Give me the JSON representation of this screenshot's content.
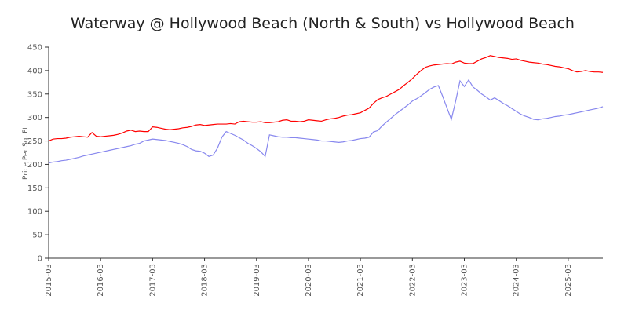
{
  "chart_data": {
    "type": "line",
    "title": "Waterway @ Hollywood Beach (North & South) vs Hollywood Beach",
    "y_label": "Price Per Sq. Ft",
    "categories": [
      "2015-03",
      "2015-04",
      "2015-05",
      "2015-06",
      "2015-07",
      "2015-08",
      "2015-09",
      "2015-10",
      "2015-11",
      "2015-12",
      "2016-01",
      "2016-02",
      "2016-03",
      "2016-04",
      "2016-05",
      "2016-06",
      "2016-07",
      "2016-08",
      "2016-09",
      "2016-10",
      "2016-11",
      "2016-12",
      "2017-01",
      "2017-02",
      "2017-03",
      "2017-04",
      "2017-05",
      "2017-06",
      "2017-07",
      "2017-08",
      "2017-09",
      "2017-10",
      "2017-11",
      "2017-12",
      "2018-01",
      "2018-02",
      "2018-03",
      "2018-04",
      "2018-05",
      "2018-06",
      "2018-07",
      "2018-08",
      "2018-09",
      "2018-10",
      "2018-11",
      "2018-12",
      "2019-01",
      "2019-02",
      "2019-03",
      "2019-04",
      "2019-05",
      "2019-06",
      "2019-07",
      "2019-08",
      "2019-09",
      "2019-10",
      "2019-11",
      "2019-12",
      "2020-01",
      "2020-02",
      "2020-03",
      "2020-04",
      "2020-05",
      "2020-06",
      "2020-07",
      "2020-08",
      "2020-09",
      "2020-10",
      "2020-11",
      "2020-12",
      "2021-01",
      "2021-02",
      "2021-03",
      "2021-04",
      "2021-05",
      "2021-06",
      "2021-07",
      "2021-08",
      "2021-09",
      "2021-10",
      "2021-11",
      "2021-12",
      "2022-01",
      "2022-02",
      "2022-03",
      "2022-04",
      "2022-05",
      "2022-06",
      "2022-07",
      "2022-08",
      "2022-09",
      "2022-10",
      "2022-11",
      "2022-12",
      "2023-01",
      "2023-02",
      "2023-03",
      "2023-04",
      "2023-05",
      "2023-06",
      "2023-07",
      "2023-08",
      "2023-09",
      "2023-10",
      "2023-11",
      "2023-12",
      "2024-01",
      "2024-02",
      "2024-03",
      "2024-04",
      "2024-05",
      "2024-06",
      "2024-07",
      "2024-08",
      "2024-09",
      "2024-10",
      "2024-11",
      "2024-12",
      "2025-01",
      "2025-02",
      "2025-03",
      "2025-04",
      "2025-05",
      "2025-06",
      "2025-07",
      "2025-08",
      "2025-09",
      "2025-10",
      "2025-11"
    ],
    "xticks": [
      "2015-03",
      "2016-03",
      "2017-03",
      "2018-03",
      "2019-03",
      "2020-03",
      "2021-03",
      "2022-03",
      "2023-03",
      "2024-03",
      "2025-03"
    ],
    "series": [
      {
        "color": "#ff0000",
        "values": [
          250,
          254,
          255,
          255,
          256,
          258,
          259,
          260,
          259,
          258,
          268,
          260,
          259,
          260,
          261,
          262,
          264,
          267,
          271,
          273,
          270,
          271,
          270,
          270,
          280,
          279,
          277,
          275,
          274,
          275,
          276,
          278,
          279,
          281,
          284,
          285,
          283,
          284,
          285,
          286,
          286,
          286,
          287,
          286,
          291,
          292,
          291,
          290,
          290,
          291,
          289,
          289,
          290,
          291,
          294,
          295,
          292,
          292,
          291,
          292,
          295,
          294,
          293,
          292,
          295,
          297,
          298,
          300,
          303,
          305,
          306,
          308,
          310,
          315,
          320,
          330,
          338,
          342,
          345,
          350,
          355,
          360,
          368,
          375,
          383,
          392,
          400,
          407,
          410,
          412,
          413,
          414,
          415,
          414,
          418,
          420,
          416,
          415,
          415,
          420,
          425,
          428,
          432,
          430,
          428,
          427,
          426,
          424,
          425,
          422,
          420,
          418,
          417,
          416,
          414,
          413,
          411,
          409,
          408,
          406,
          404,
          400,
          397,
          398,
          400,
          398,
          397,
          397,
          396
        ]
      },
      {
        "color": "#8888ee",
        "values": [
          203,
          205,
          206,
          208,
          209,
          211,
          213,
          215,
          218,
          220,
          222,
          224,
          226,
          228,
          230,
          232,
          234,
          236,
          238,
          240,
          243,
          245,
          250,
          252,
          254,
          253,
          252,
          251,
          249,
          247,
          245,
          242,
          238,
          232,
          229,
          228,
          224,
          217,
          220,
          235,
          258,
          270,
          266,
          262,
          257,
          252,
          245,
          240,
          234,
          227,
          217,
          263,
          261,
          259,
          258,
          258,
          257,
          257,
          256,
          255,
          254,
          253,
          252,
          250,
          250,
          249,
          248,
          247,
          248,
          250,
          251,
          253,
          255,
          256,
          258,
          269,
          272,
          282,
          290,
          298,
          306,
          313,
          320,
          327,
          335,
          340,
          346,
          353,
          360,
          365,
          368,
          345,
          320,
          296,
          335,
          378,
          366,
          380,
          365,
          358,
          350,
          344,
          337,
          342,
          336,
          330,
          325,
          319,
          313,
          307,
          303,
          300,
          296,
          295,
          297,
          298,
          300,
          302,
          303,
          305,
          306,
          308,
          310,
          312,
          314,
          316,
          318,
          320,
          323
        ]
      }
    ],
    "ylim": [
      0,
      450
    ],
    "yticks": [
      0,
      50,
      100,
      150,
      200,
      250,
      300,
      350,
      400,
      450
    ],
    "grid": false
  }
}
